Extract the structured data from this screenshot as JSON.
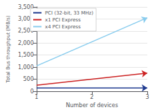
{
  "chart_data": {
    "type": "line",
    "xlabel": "Number of devices",
    "ylabel": "Total Bus throughput (MB/s)",
    "x": [
      1,
      3
    ],
    "series": [
      {
        "name": "PCI (32-bit, 33 MHz)",
        "color": "#1f3a8f",
        "values": [
          133,
          133
        ]
      },
      {
        "name": "x1 PCI Express",
        "color": "#cc2222",
        "values": [
          250,
          750
        ]
      },
      {
        "name": "x4 PCI Express",
        "color": "#88ccee",
        "values": [
          1050,
          3050
        ]
      }
    ],
    "xlim": [
      1,
      3
    ],
    "xticks": [
      1,
      2,
      3
    ],
    "ylim": [
      0,
      3500
    ],
    "yticks": [
      0,
      500,
      1000,
      1500,
      2000,
      2500,
      3000,
      3500
    ],
    "grid": true,
    "legend": "upper left"
  }
}
